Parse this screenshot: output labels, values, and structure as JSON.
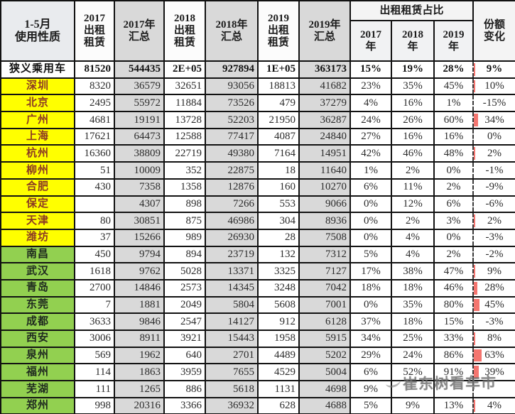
{
  "chart_data": {
    "type": "table",
    "header": {
      "usage": "1-5月\n使用性质",
      "c2017_rental": "2017\n出租\n租赁",
      "c2017_total": "2017年\n汇总",
      "c2018_rental": "2018\n出租\n租赁",
      "c2018_total": "2018年\n汇总",
      "c2019_rental": "2019\n出租\n租赁",
      "c2019_total": "2019年\n汇总",
      "share_group": "出租租赁占比",
      "share_2017": "2017\n年",
      "share_2018": "2018\n年",
      "share_2019": "2019\n年",
      "share_change": "份额\n变化"
    },
    "rows": [
      {
        "name": "狭义乘用车",
        "color": "white",
        "bold": true,
        "values": [
          "81520",
          "544435",
          "2E+05",
          "927894",
          "1E+05",
          "363173"
        ],
        "shares": [
          "15%",
          "19%",
          "28%"
        ],
        "share_change": "9%"
      },
      {
        "name": "深圳",
        "color": "yellow",
        "bold": false,
        "values": [
          "8320",
          "36579",
          "32651",
          "93056",
          "18813",
          "41682"
        ],
        "shares": [
          "23%",
          "35%",
          "45%"
        ],
        "share_change": "10%"
      },
      {
        "name": "北京",
        "color": "yellow",
        "bold": false,
        "values": [
          "2495",
          "55972",
          "11884",
          "73526",
          "479",
          "37279"
        ],
        "shares": [
          "4%",
          "16%",
          "1%"
        ],
        "share_change": "-15%"
      },
      {
        "name": "广州",
        "color": "yellow",
        "bold": false,
        "values": [
          "4681",
          "19191",
          "13728",
          "52203",
          "21950",
          "36287"
        ],
        "shares": [
          "24%",
          "26%",
          "60%"
        ],
        "share_change": "34%"
      },
      {
        "name": "上海",
        "color": "yellow",
        "bold": false,
        "values": [
          "17621",
          "64473",
          "12588",
          "77417",
          "4087",
          "24840"
        ],
        "shares": [
          "27%",
          "16%",
          "16%"
        ],
        "share_change": "0%"
      },
      {
        "name": "杭州",
        "color": "yellow",
        "bold": false,
        "values": [
          "16360",
          "38809",
          "22719",
          "49380",
          "7164",
          "14951"
        ],
        "shares": [
          "42%",
          "46%",
          "48%"
        ],
        "share_change": "2%"
      },
      {
        "name": "柳州",
        "color": "yellow",
        "bold": false,
        "values": [
          "51",
          "10009",
          "352",
          "22875",
          "18",
          "11640"
        ],
        "shares": [
          "1%",
          "2%",
          "0%"
        ],
        "share_change": "-1%"
      },
      {
        "name": "合肥",
        "color": "yellow",
        "bold": false,
        "values": [
          "430",
          "7358",
          "1358",
          "12876",
          "160",
          "10270"
        ],
        "shares": [
          "6%",
          "11%",
          "2%"
        ],
        "share_change": "-9%"
      },
      {
        "name": "保定",
        "color": "yellow",
        "bold": false,
        "values": [
          "",
          "4307",
          "898",
          "7266",
          "553",
          "9066"
        ],
        "shares": [
          "0%",
          "12%",
          "6%"
        ],
        "share_change": "-6%"
      },
      {
        "name": "天津",
        "color": "yellow",
        "bold": false,
        "values": [
          "80",
          "30851",
          "875",
          "46986",
          "304",
          "8936"
        ],
        "shares": [
          "0%",
          "2%",
          "3%"
        ],
        "share_change": "2%"
      },
      {
        "name": "潍坊",
        "color": "yellow",
        "bold": false,
        "values": [
          "37",
          "15266",
          "989",
          "26930",
          "28",
          "7508"
        ],
        "shares": [
          "0%",
          "4%",
          "0%"
        ],
        "share_change": "-3%"
      },
      {
        "name": "南昌",
        "color": "green",
        "bold": false,
        "values": [
          "450",
          "9794",
          "894",
          "23719",
          "132",
          "7312"
        ],
        "shares": [
          "5%",
          "4%",
          "2%"
        ],
        "share_change": "-2%"
      },
      {
        "name": "武汉",
        "color": "green",
        "bold": false,
        "values": [
          "1618",
          "9762",
          "5028",
          "13371",
          "3325",
          "7127"
        ],
        "shares": [
          "17%",
          "38%",
          "47%"
        ],
        "share_change": "9%"
      },
      {
        "name": "青岛",
        "color": "green",
        "bold": false,
        "values": [
          "2700",
          "14846",
          "2573",
          "14345",
          "3248",
          "7042"
        ],
        "shares": [
          "18%",
          "18%",
          "46%"
        ],
        "share_change": "28%"
      },
      {
        "name": "东莞",
        "color": "green",
        "bold": false,
        "values": [
          "7",
          "1881",
          "2049",
          "5804",
          "5608",
          "7001"
        ],
        "shares": [
          "0%",
          "35%",
          "80%"
        ],
        "share_change": "45%"
      },
      {
        "name": "成都",
        "color": "green",
        "bold": false,
        "values": [
          "3633",
          "9846",
          "2547",
          "14127",
          "912",
          "6128"
        ],
        "shares": [
          "37%",
          "18%",
          "15%"
        ],
        "share_change": "-3%"
      },
      {
        "name": "西安",
        "color": "green",
        "bold": false,
        "values": [
          "3006",
          "8911",
          "3921",
          "15443",
          "1958",
          "5915"
        ],
        "shares": [
          "34%",
          "25%",
          "33%"
        ],
        "share_change": "8%"
      },
      {
        "name": "泉州",
        "color": "green",
        "bold": false,
        "values": [
          "569",
          "1962",
          "640",
          "2701",
          "4489",
          "5202"
        ],
        "shares": [
          "29%",
          "24%",
          "86%"
        ],
        "share_change": "63%"
      },
      {
        "name": "福州",
        "color": "green",
        "bold": false,
        "values": [
          "114",
          "1863",
          "3959",
          "7655",
          "4529",
          "5004"
        ],
        "shares": [
          "6%",
          "52%",
          "91%"
        ],
        "share_change": "39%"
      },
      {
        "name": "芜湖",
        "color": "green",
        "bold": false,
        "values": [
          "111",
          "1265",
          "886",
          "5618",
          "1131",
          "4698"
        ],
        "shares": [
          "9%",
          "",
          ""
        ],
        "share_change": ""
      },
      {
        "name": "郑州",
        "color": "green",
        "bold": false,
        "values": [
          "998",
          "20316",
          "3366",
          "36932",
          "628",
          "4688"
        ],
        "shares": [
          "5%",
          "9%",
          "13%"
        ],
        "share_change": "4%"
      }
    ]
  },
  "watermark": {
    "text": "崔东树看车市"
  },
  "colors": {
    "row_yellow": "#ffff00",
    "row_green": "#92d050",
    "column_shade_gray": "#d9d9d9",
    "share_bar_red": "#f4756f",
    "yellow_row_text": "#8c3a23"
  }
}
